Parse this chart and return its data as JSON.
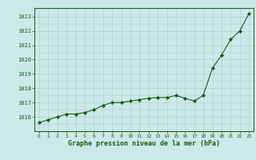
{
  "x": [
    0,
    1,
    2,
    3,
    4,
    5,
    6,
    7,
    8,
    9,
    10,
    11,
    12,
    13,
    14,
    15,
    16,
    17,
    18,
    19,
    20,
    21,
    22,
    23
  ],
  "y": [
    1015.6,
    1015.8,
    1016.0,
    1016.2,
    1016.2,
    1016.3,
    1016.5,
    1016.8,
    1017.0,
    1017.0,
    1017.1,
    1017.2,
    1017.3,
    1017.35,
    1017.35,
    1017.5,
    1017.3,
    1017.1,
    1017.5,
    1019.4,
    1020.3,
    1021.4,
    1022.0,
    1023.2
  ],
  "ylim": [
    1015.0,
    1023.6
  ],
  "xlim": [
    -0.5,
    23.5
  ],
  "yticks": [
    1016,
    1017,
    1018,
    1019,
    1020,
    1021,
    1022,
    1023
  ],
  "xticks": [
    0,
    1,
    2,
    3,
    4,
    5,
    6,
    7,
    8,
    9,
    10,
    11,
    12,
    13,
    14,
    15,
    16,
    17,
    18,
    19,
    20,
    21,
    22,
    23
  ],
  "line_color": "#1a5c1a",
  "marker_color": "#1a5c1a",
  "bg_color": "#cce8e8",
  "grid_color": "#b0c8c8",
  "xlabel": "Graphe pression niveau de la mer (hPa)",
  "xlabel_color": "#1a5c1a",
  "tick_color": "#1a5c1a",
  "spine_color": "#1a5c1a"
}
